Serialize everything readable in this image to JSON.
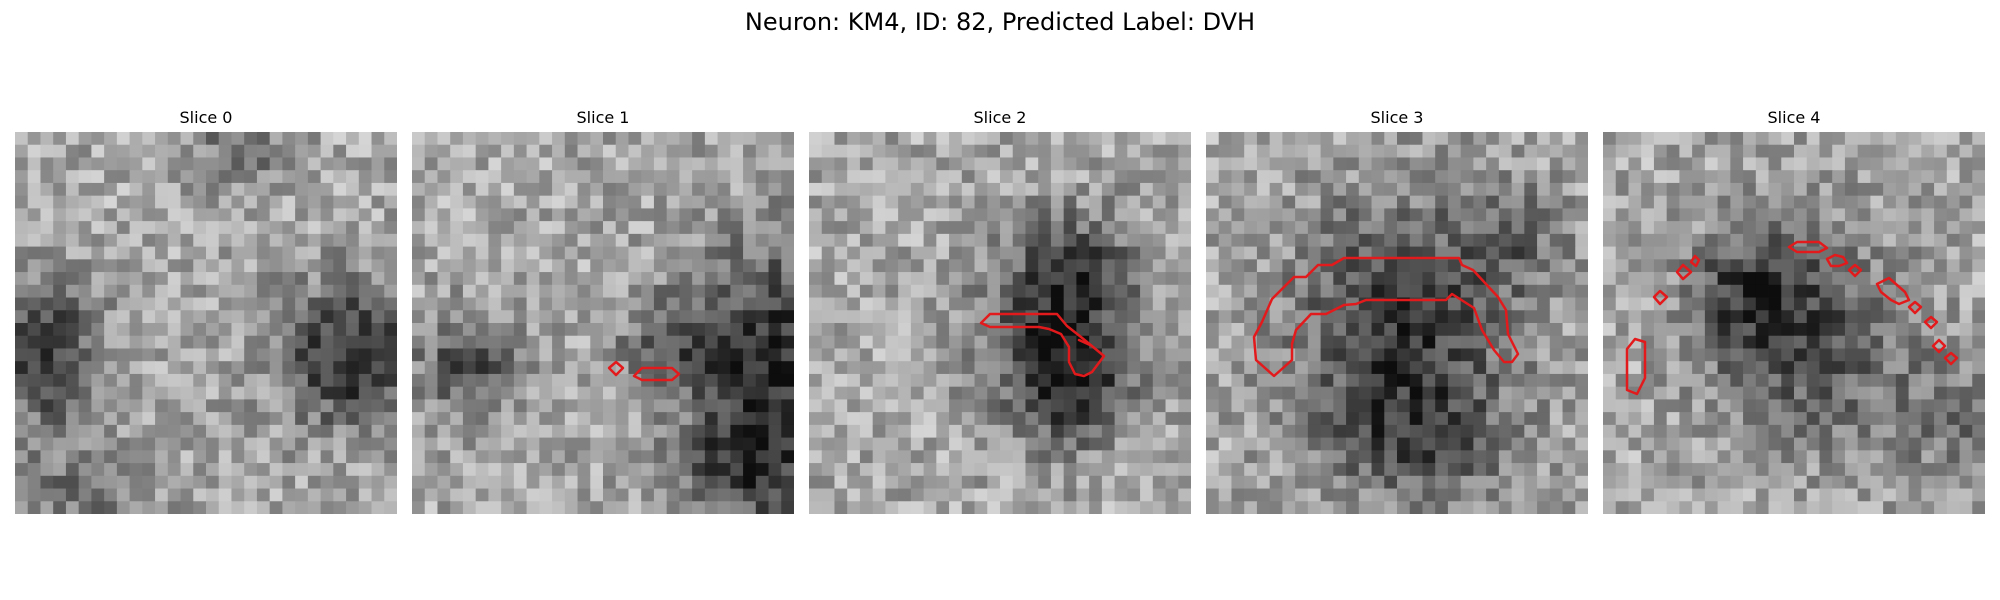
{
  "figure": {
    "title": "Neuron: KM4, ID: 82, Predicted Label: DVH"
  },
  "image_grid": {
    "size_pixels": 30,
    "colormap": "grayscale"
  },
  "contour_color": "#e31a1c",
  "slices": [
    {
      "title": "Slice 0"
    },
    {
      "title": "Slice 1"
    },
    {
      "title": "Slice 2"
    },
    {
      "title": "Slice 3"
    },
    {
      "title": "Slice 4"
    }
  ]
}
